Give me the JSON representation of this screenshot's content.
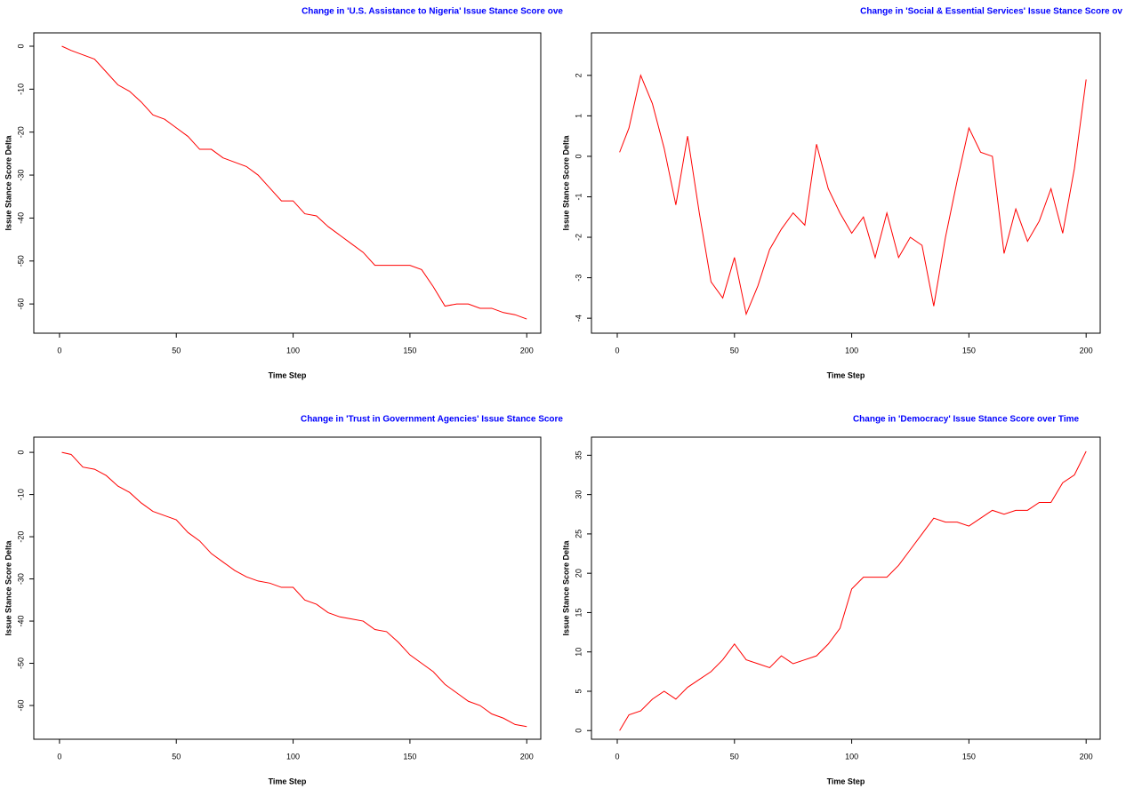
{
  "chart_data": [
    {
      "type": "line",
      "title": "Change in 'U.S. Assistance to Nigeria' Issue Stance Score ove",
      "xlabel": "Time Step",
      "ylabel": "Issue Stance Score Delta",
      "x": [
        1,
        5,
        10,
        15,
        20,
        25,
        30,
        35,
        40,
        45,
        50,
        55,
        60,
        65,
        70,
        75,
        80,
        85,
        90,
        95,
        100,
        105,
        110,
        115,
        120,
        125,
        130,
        135,
        140,
        145,
        150,
        155,
        160,
        165,
        170,
        175,
        180,
        185,
        190,
        195,
        200
      ],
      "series": [
        {
          "color": "#ff0000",
          "values": [
            0,
            -1,
            -2,
            -3,
            -6,
            -9,
            -10.5,
            -13,
            -16,
            -17,
            -19,
            -21,
            -24,
            -24,
            -26,
            -27,
            -28,
            -30,
            -33,
            -36,
            -36,
            -39,
            -39.5,
            -42,
            -44,
            -46,
            -48,
            -51,
            -51,
            -51,
            -51,
            -52,
            -56,
            -60.5,
            -60,
            -60,
            -61,
            -61,
            -62,
            -62.5,
            -63.5
          ]
        }
      ],
      "xlim": [
        -11,
        206
      ],
      "xticks": [
        0,
        50,
        100,
        150,
        200
      ],
      "ylim": [
        -66.8,
        3.1
      ],
      "yticks": [
        0,
        -10,
        -20,
        -30,
        -40,
        -50,
        -60
      ]
    },
    {
      "type": "line",
      "title": "Change in 'Social & Essential Services' Issue Stance Score ov",
      "xlabel": "Time Step",
      "ylabel": "Issue Stance Score Delta",
      "x": [
        1,
        5,
        10,
        15,
        20,
        25,
        30,
        35,
        40,
        45,
        50,
        55,
        60,
        65,
        70,
        75,
        80,
        85,
        90,
        95,
        100,
        105,
        110,
        115,
        120,
        125,
        130,
        135,
        140,
        145,
        150,
        155,
        160,
        165,
        170,
        175,
        180,
        185,
        190,
        195,
        200
      ],
      "series": [
        {
          "color": "#ff0000",
          "values": [
            0.1,
            0.7,
            2.0,
            1.3,
            0.2,
            -1.2,
            0.5,
            -1.4,
            -3.1,
            -3.5,
            -2.5,
            -3.9,
            -3.2,
            -2.3,
            -1.8,
            -1.4,
            -1.7,
            0.3,
            -0.8,
            -1.4,
            -1.9,
            -1.5,
            -2.5,
            -1.4,
            -2.5,
            -2.0,
            -2.2,
            -3.7,
            -2.0,
            -0.6,
            0.7,
            0.1,
            0.0,
            -2.4,
            -1.3,
            -2.1,
            -1.6,
            -0.8,
            -1.9,
            -0.3,
            1.9
          ]
        }
      ],
      "xlim": [
        -11,
        206
      ],
      "xticks": [
        0,
        50,
        100,
        150,
        200
      ],
      "ylim": [
        -4.37,
        3.05
      ],
      "yticks": [
        -4,
        -3,
        -2,
        -1,
        0,
        1,
        2
      ]
    },
    {
      "type": "line",
      "title": "Change in 'Trust in Government Agencies' Issue Stance Score",
      "xlabel": "Time Step",
      "ylabel": "Issue Stance Score Delta",
      "x": [
        1,
        5,
        10,
        15,
        20,
        25,
        30,
        35,
        40,
        45,
        50,
        55,
        60,
        65,
        70,
        75,
        80,
        85,
        90,
        95,
        100,
        105,
        110,
        115,
        120,
        125,
        130,
        135,
        140,
        145,
        150,
        155,
        160,
        165,
        170,
        175,
        180,
        185,
        190,
        195,
        200
      ],
      "series": [
        {
          "color": "#ff0000",
          "values": [
            0,
            -0.5,
            -3.5,
            -4,
            -5.5,
            -8,
            -9.5,
            -12,
            -14,
            -15,
            -16,
            -19,
            -21,
            -24,
            -26,
            -28,
            -29.5,
            -30.5,
            -31,
            -32,
            -32,
            -35,
            -36,
            -38,
            -39,
            -39.5,
            -40,
            -42,
            -42.5,
            -45,
            -48,
            -50,
            -52,
            -55,
            -57,
            -59,
            -60,
            -62,
            -63,
            -64.5,
            -65
          ]
        }
      ],
      "xlim": [
        -11,
        206
      ],
      "xticks": [
        0,
        50,
        100,
        150,
        200
      ],
      "ylim": [
        -68,
        3.6
      ],
      "yticks": [
        0,
        -10,
        -20,
        -30,
        -40,
        -50,
        -60
      ]
    },
    {
      "type": "line",
      "title": "Change in 'Democracy' Issue Stance Score over Time",
      "xlabel": "Time Step",
      "ylabel": "Issue Stance Score Delta",
      "x": [
        1,
        5,
        10,
        15,
        20,
        25,
        30,
        35,
        40,
        45,
        50,
        55,
        60,
        65,
        70,
        75,
        80,
        85,
        90,
        95,
        100,
        105,
        110,
        115,
        120,
        125,
        130,
        135,
        140,
        145,
        150,
        155,
        160,
        165,
        170,
        175,
        180,
        185,
        190,
        195,
        200
      ],
      "series": [
        {
          "color": "#ff0000",
          "values": [
            0,
            2,
            2.5,
            4,
            5,
            4,
            5.5,
            6.5,
            7.5,
            9,
            11,
            9,
            8.5,
            8,
            9.5,
            8.5,
            9,
            9.5,
            11,
            13,
            18,
            19.5,
            19.5,
            19.5,
            21,
            23,
            25,
            27,
            26.5,
            26.5,
            26,
            27,
            28,
            27.5,
            28,
            28,
            29,
            29,
            31.5,
            32.5,
            35.5
          ]
        }
      ],
      "xlim": [
        -11,
        206
      ],
      "xticks": [
        0,
        50,
        100,
        150,
        200
      ],
      "ylim": [
        -1.1,
        37.3
      ],
      "yticks": [
        0,
        5,
        10,
        15,
        20,
        25,
        30,
        35
      ]
    }
  ]
}
